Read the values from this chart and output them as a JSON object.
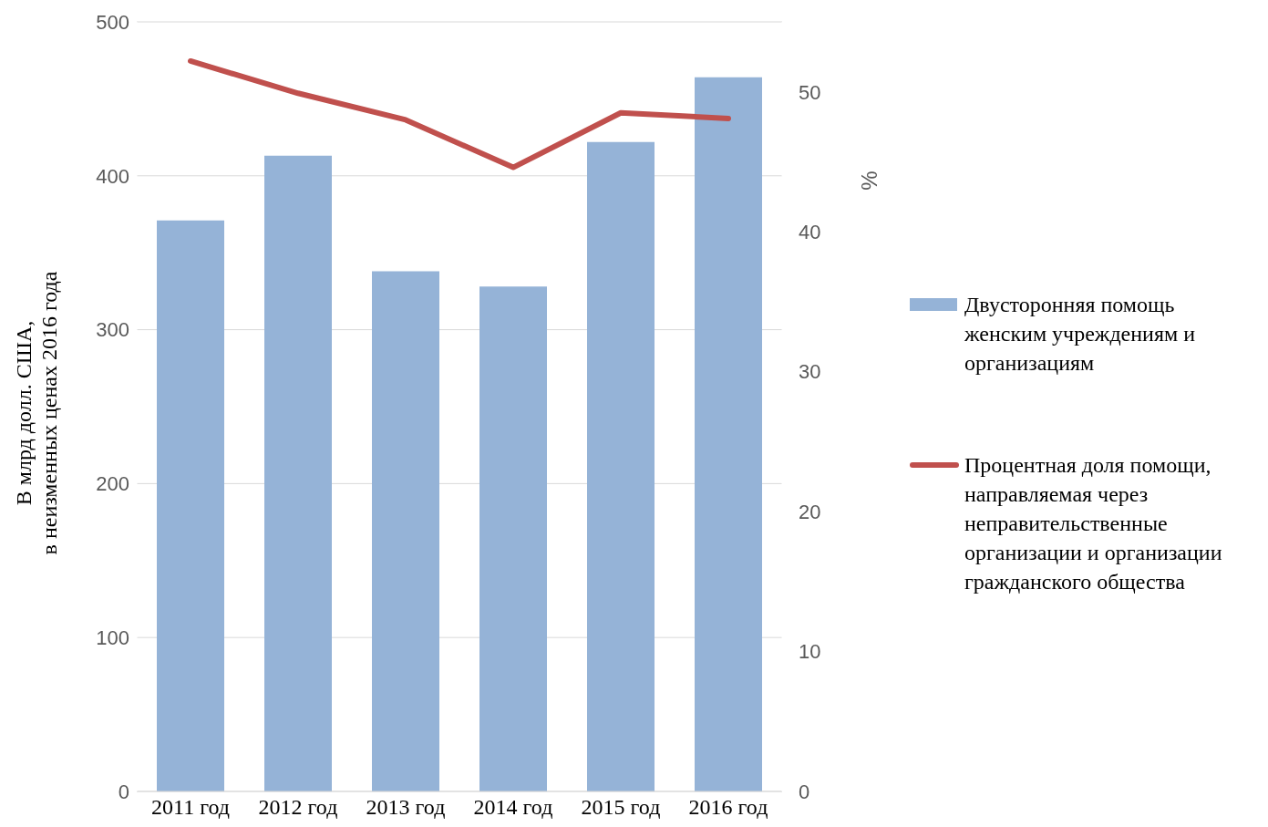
{
  "chart_data": {
    "type": "bar",
    "categories": [
      "2011 год",
      "2012 год",
      "2013 год",
      "2014 год",
      "2015 год",
      "2016 год"
    ],
    "ylabel": "В млрд долл. США,\nв неизменных ценах 2016 года",
    "y2label": "%",
    "series": [
      {
        "name": "Двусторонняя помощь женским учреждениям и организациям",
        "color": "#95b3d7",
        "values": [
          371,
          413,
          338,
          328,
          422,
          464
        ]
      },
      {
        "name": "Процентная доля помощи, направляемая через неправительственные организации и организации гражданского общества",
        "type": "line",
        "axis": "y2",
        "color": "#c0504d",
        "values": [
          52.2,
          49.9,
          48.0,
          44.6,
          48.5,
          48.1
        ]
      }
    ],
    "ylim": [
      0,
      500
    ],
    "yticks": [
      0,
      100,
      200,
      300,
      400,
      500
    ],
    "y2lim": [
      0,
      55
    ],
    "y2ticks": [
      0,
      10,
      20,
      30,
      40,
      50
    ],
    "grid": "y",
    "legend": "right",
    "marker": "none"
  }
}
